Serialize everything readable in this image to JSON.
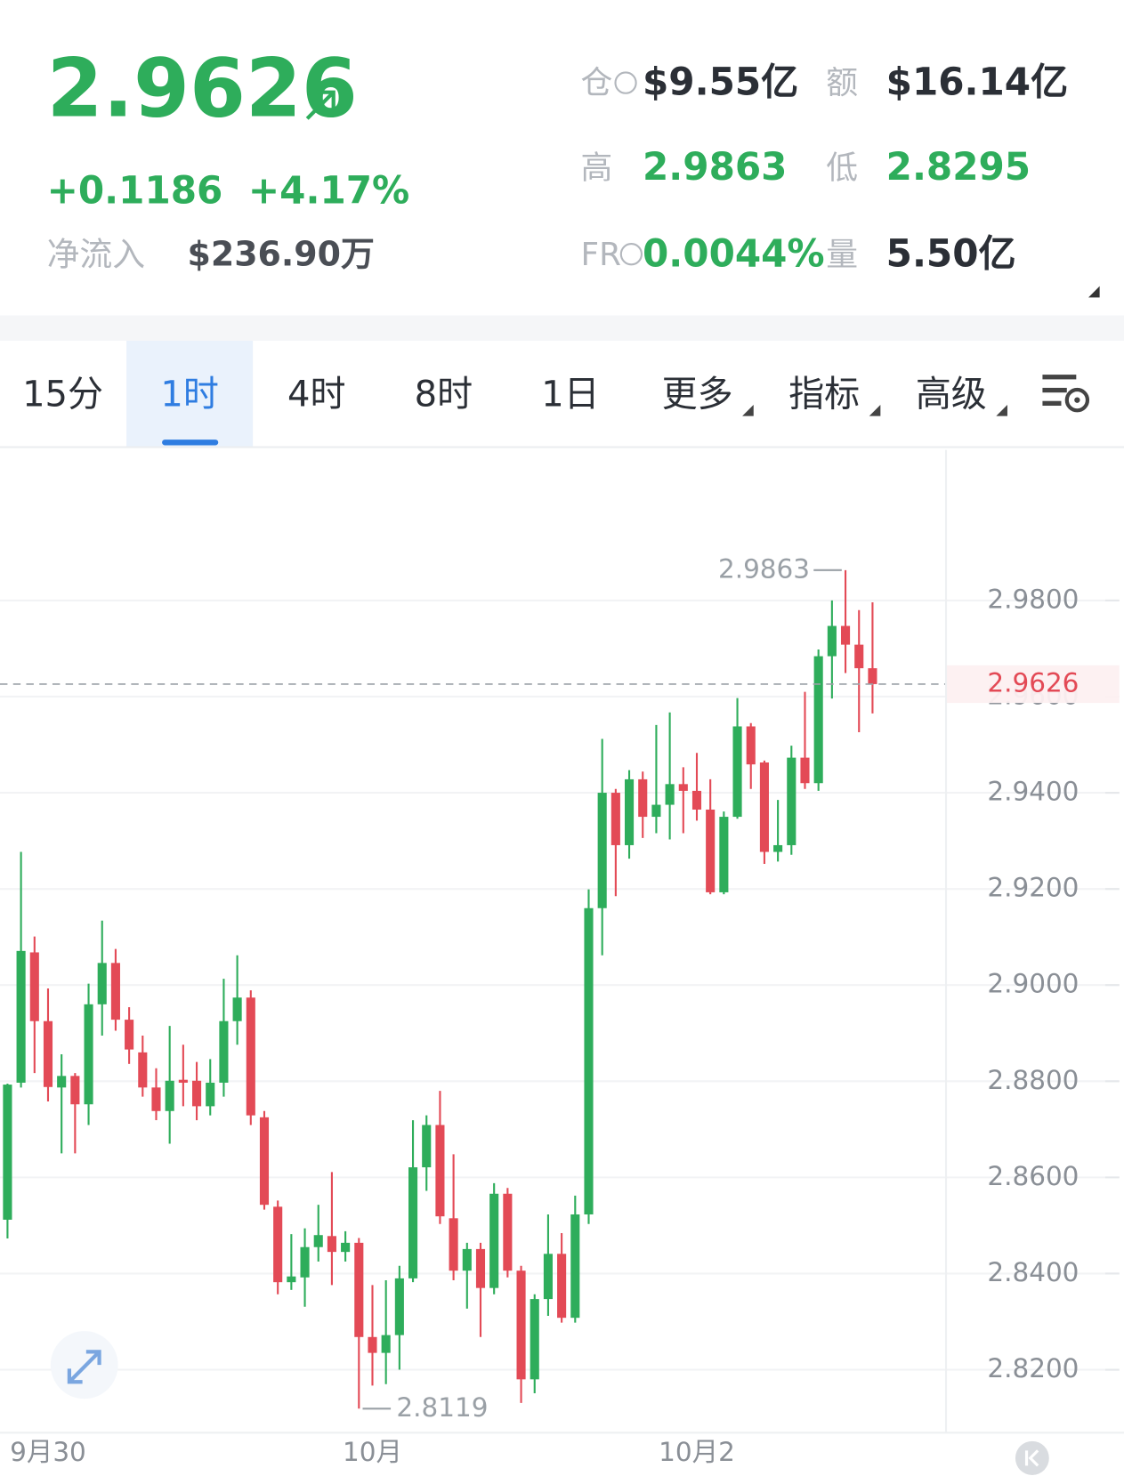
{
  "header": {
    "price": "2.9626",
    "change": "+0.1186",
    "change_pct": "+4.17%",
    "net_inflow_label": "净流入",
    "net_inflow": "$236.90万",
    "stats": [
      {
        "label": "仓",
        "value": "$9.55亿",
        "color": "#2b2f36"
      },
      {
        "label": "额",
        "value": "$16.14亿",
        "color": "#2b2f36"
      },
      {
        "label": "高",
        "value": "2.9863",
        "color": "#2ead5b"
      },
      {
        "label": "低",
        "value": "2.8295",
        "color": "#2ead5b"
      },
      {
        "label": "FR",
        "value": "0.0044%",
        "color": "#2ead5b"
      },
      {
        "label": "量",
        "value": "5.50亿",
        "color": "#2b2f36"
      }
    ]
  },
  "tabs": [
    "15分",
    "1时",
    "4时",
    "8时",
    "1日",
    "更多",
    "指标",
    "高级"
  ],
  "active_tab": 1,
  "chart_data": {
    "type": "candlestick",
    "up_color": "#2ead5b",
    "down_color": "#e34a56",
    "categories": [
      null,
      null,
      null,
      "9月30",
      null,
      null,
      null,
      null,
      null,
      null,
      null,
      null,
      null,
      null,
      null,
      null,
      null,
      null,
      null,
      null,
      null,
      null,
      null,
      null,
      null,
      null,
      null,
      "10月",
      null,
      null,
      null,
      null,
      null,
      null,
      null,
      null,
      null,
      null,
      null,
      null,
      null,
      null,
      null,
      null,
      null,
      null,
      null,
      null,
      null,
      null,
      null,
      "10月2",
      null,
      null,
      null,
      null,
      null,
      null,
      null,
      null,
      null,
      null,
      null,
      null,
      null
    ],
    "open": [
      2.8512,
      2.8797,
      2.9068,
      2.8925,
      2.8787,
      2.8811,
      2.8752,
      2.896,
      2.9046,
      2.8928,
      2.886,
      2.8787,
      2.8738,
      2.8803,
      2.8801,
      2.8748,
      2.8797,
      2.8925,
      2.8974,
      2.8725,
      2.8539,
      2.8382,
      2.8392,
      2.8455,
      2.8478,
      2.8445,
      2.8464,
      2.8268,
      2.8235,
      2.8272,
      2.839,
      2.8621,
      2.8709,
      2.8515,
      2.8406,
      2.8451,
      2.837,
      2.8566,
      2.8406,
      2.818,
      2.8347,
      2.8441,
      2.8308,
      2.8523,
      2.916,
      2.94,
      2.9291,
      2.9428,
      2.935,
      2.9375,
      2.9418,
      2.9404,
      2.9365,
      2.9193,
      2.935,
      2.9538,
      2.9463,
      2.9277,
      2.9291,
      2.9473,
      2.942,
      2.9684,
      2.9747,
      2.9708,
      2.9659
    ],
    "high": [
      2.8795,
      2.9277,
      2.9101,
      2.8993,
      2.8856,
      2.8817,
      2.9003,
      2.9134,
      2.9075,
      2.8954,
      2.8895,
      2.8827,
      2.8915,
      2.8876,
      2.884,
      2.8846,
      2.9013,
      2.9062,
      2.8989,
      2.8738,
      2.8552,
      2.8482,
      2.8494,
      2.8543,
      2.8611,
      2.8488,
      2.8474,
      2.8376,
      2.8386,
      2.8416,
      2.8719,
      2.8729,
      2.878,
      2.8648,
      2.8464,
      2.8464,
      2.8588,
      2.8578,
      2.8416,
      2.8357,
      2.8523,
      2.8484,
      2.8562,
      2.9199,
      2.9512,
      2.9408,
      2.9447,
      2.9444,
      2.9541,
      2.9567,
      2.9453,
      2.9483,
      2.9428,
      2.9361,
      2.9597,
      2.9545,
      2.9467,
      2.9385,
      2.9498,
      2.961,
      2.9698,
      2.98,
      2.9863,
      2.978,
      2.9796
    ],
    "low": [
      2.8473,
      2.8787,
      2.8817,
      2.8758,
      2.865,
      2.865,
      2.8709,
      2.8895,
      2.8905,
      2.8836,
      2.8768,
      2.8719,
      2.867,
      2.8748,
      2.8719,
      2.8729,
      2.8768,
      2.8876,
      2.8709,
      2.8533,
      2.8357,
      2.8366,
      2.8331,
      2.8425,
      2.8376,
      2.8425,
      2.8119,
      2.8167,
      2.817,
      2.82,
      2.8382,
      2.8572,
      2.8503,
      2.8386,
      2.8327,
      2.8268,
      2.8357,
      2.8392,
      2.8131,
      2.8151,
      2.8312,
      2.8298,
      2.8298,
      2.8503,
      2.9062,
      2.9185,
      2.9263,
      2.9306,
      2.9316,
      2.9303,
      2.9316,
      2.9342,
      2.9189,
      2.9189,
      2.9346,
      2.9408,
      2.9252,
      2.9257,
      2.9271,
      2.9408,
      2.9404,
      2.9596,
      2.9649,
      2.9526,
      2.9565
    ],
    "close": [
      2.8793,
      2.9071,
      2.8925,
      2.8788,
      2.8811,
      2.8752,
      2.896,
      2.9046,
      2.8928,
      2.8866,
      2.8787,
      2.8738,
      2.8801,
      2.8797,
      2.8748,
      2.8797,
      2.8925,
      2.8974,
      2.8729,
      2.8543,
      2.8382,
      2.8394,
      2.8455,
      2.848,
      2.8445,
      2.8464,
      2.8268,
      2.8235,
      2.8272,
      2.839,
      2.8621,
      2.8709,
      2.8519,
      2.8406,
      2.8451,
      2.837,
      2.8566,
      2.8406,
      2.818,
      2.8347,
      2.8441,
      2.8308,
      2.8523,
      2.916,
      2.94,
      2.9291,
      2.9428,
      2.935,
      2.9375,
      2.9418,
      2.9404,
      2.9365,
      2.9193,
      2.935,
      2.9538,
      2.9459,
      2.9277,
      2.9291,
      2.9473,
      2.942,
      2.9684,
      2.9747,
      2.9708,
      2.9659,
      2.9626
    ],
    "ylim": [
      2.8069,
      3.0113
    ],
    "yticks": [
      {
        "value": 2.98,
        "label": "2.9800"
      },
      {
        "value": 2.96,
        "label": "2.9600"
      },
      {
        "value": 2.94,
        "label": "2.9400"
      },
      {
        "value": 2.92,
        "label": "2.9200"
      },
      {
        "value": 2.9,
        "label": "2.9000"
      },
      {
        "value": 2.88,
        "label": "2.8800"
      },
      {
        "value": 2.86,
        "label": "2.8600"
      },
      {
        "value": 2.84,
        "label": "2.8400"
      },
      {
        "value": 2.82,
        "label": "2.8200"
      }
    ],
    "grid": true,
    "high_marker": 2.9863,
    "low_marker": 2.8119,
    "last_price": 2.9626
  }
}
